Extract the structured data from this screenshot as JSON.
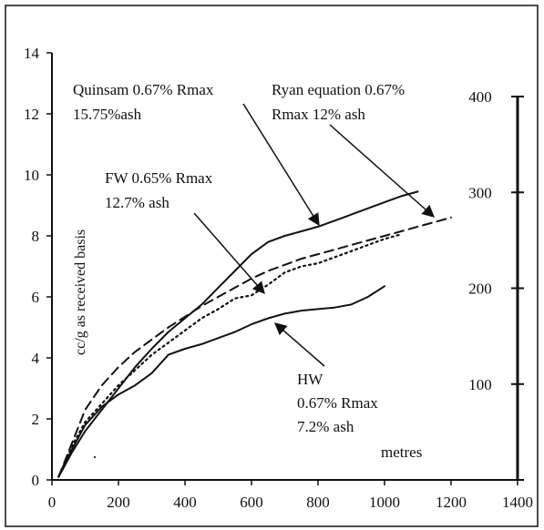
{
  "chart_data": {
    "type": "line",
    "xlabel": "metres",
    "ylabel": "cc/g as received basis",
    "xlim": [
      0,
      1400
    ],
    "ylim": [
      0,
      14
    ],
    "x_ticks": [
      "0",
      "200",
      "400",
      "600",
      "800",
      "1000",
      "1200",
      "1400"
    ],
    "y_ticks": [
      "0",
      "2",
      "4",
      "6",
      "8",
      "10",
      "12",
      "14"
    ],
    "secondary_axis": {
      "ticks": [
        "100",
        "200",
        "300",
        "400"
      ],
      "values": [
        100,
        200,
        300,
        400
      ],
      "range": [
        0,
        400
      ]
    },
    "series": [
      {
        "id": "quinsam",
        "style": "solid",
        "x": [
          20,
          60,
          100,
          150,
          200,
          250,
          300,
          350,
          400,
          450,
          500,
          550,
          600,
          650,
          700,
          750,
          800,
          850,
          900,
          950,
          1000,
          1050,
          1100
        ],
        "y": [
          0.1,
          0.9,
          1.6,
          2.3,
          3.0,
          3.7,
          4.3,
          4.85,
          5.3,
          5.75,
          6.3,
          6.85,
          7.4,
          7.8,
          8.0,
          8.15,
          8.3,
          8.5,
          8.7,
          8.9,
          9.1,
          9.3,
          9.45
        ]
      },
      {
        "id": "ryan",
        "style": "dashed",
        "x": [
          20,
          60,
          100,
          150,
          200,
          250,
          300,
          350,
          400,
          450,
          500,
          550,
          600,
          650,
          700,
          750,
          800,
          850,
          900,
          950,
          1000,
          1050,
          1100,
          1150,
          1200
        ],
        "y": [
          0.1,
          1.2,
          2.3,
          3.1,
          3.7,
          4.2,
          4.6,
          5.0,
          5.35,
          5.7,
          6.0,
          6.3,
          6.6,
          6.85,
          7.05,
          7.25,
          7.4,
          7.55,
          7.7,
          7.85,
          8.0,
          8.15,
          8.3,
          8.45,
          8.6
        ]
      },
      {
        "id": "fw",
        "style": "dotted",
        "x": [
          20,
          60,
          100,
          150,
          200,
          250,
          300,
          350,
          400,
          450,
          500,
          550,
          600,
          650,
          700,
          750,
          800,
          850,
          900,
          950,
          1000,
          1050
        ],
        "y": [
          0.1,
          1.1,
          1.9,
          2.5,
          3.1,
          3.6,
          4.1,
          4.5,
          4.9,
          5.3,
          5.6,
          5.95,
          6.05,
          6.4,
          6.8,
          7.0,
          7.1,
          7.3,
          7.5,
          7.7,
          7.9,
          8.05
        ]
      },
      {
        "id": "hw",
        "style": "solid",
        "x": [
          20,
          60,
          100,
          150,
          200,
          250,
          300,
          350,
          400,
          450,
          500,
          550,
          600,
          650,
          700,
          750,
          800,
          850,
          900,
          950,
          1000
        ],
        "y": [
          0.1,
          1.0,
          1.8,
          2.4,
          2.8,
          3.1,
          3.5,
          4.1,
          4.3,
          4.45,
          4.65,
          4.85,
          5.1,
          5.3,
          5.45,
          5.55,
          5.6,
          5.65,
          5.75,
          6.0,
          6.35
        ]
      }
    ],
    "annotations": [
      {
        "id": "quinsam",
        "lines": [
          "Quinsam 0.67% Rmax",
          "15.75%ash"
        ]
      },
      {
        "id": "ryan",
        "lines": [
          "Ryan equation 0.67%",
          "Rmax 12% ash"
        ]
      },
      {
        "id": "fw",
        "lines": [
          "FW 0.65% Rmax",
          "12.7% ash"
        ]
      },
      {
        "id": "hw",
        "lines": [
          "HW",
          "0.67% Rmax",
          "7.2% ash"
        ]
      }
    ],
    "grid": false,
    "legend": "none"
  }
}
